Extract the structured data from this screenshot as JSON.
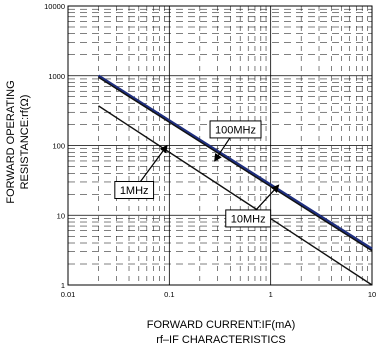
{
  "chart_data": {
    "type": "line",
    "title": "",
    "caption": "rf–IF CHARACTERISTICS",
    "xlabel": "FORWARD CURRENT:IF(mA)",
    "ylabel_line1": "FORWARD OPERATING",
    "ylabel_line2": "RESISTANCE:rf(Ω)",
    "xscale": "log",
    "yscale": "log",
    "xlim": [
      0.01,
      10
    ],
    "ylim": [
      1,
      10000
    ],
    "grid": true,
    "x_tick_labels": [
      "0.01",
      "0.1",
      "1",
      "10"
    ],
    "y_tick_labels": [
      "1",
      "10",
      "100",
      "1000",
      "10000"
    ],
    "series": [
      {
        "name": "100MHz",
        "color": "#1f2f7f",
        "x": [
          0.02,
          10
        ],
        "y": [
          1000,
          3.3
        ]
      },
      {
        "name": "10MHz",
        "color": "#111111",
        "x": [
          0.02,
          10
        ],
        "y": [
          950,
          3.1
        ]
      },
      {
        "name": "1MHz",
        "color": "#111111",
        "x": [
          0.02,
          10
        ],
        "y": [
          370,
          1.0
        ]
      }
    ],
    "annotations": [
      {
        "text": "100MHz",
        "x": 0.45,
        "y": 170,
        "points_to": {
          "x": 0.28,
          "y": 60
        }
      },
      {
        "text": "1MHz",
        "x": 0.045,
        "y": 23,
        "points_to": {
          "x": 0.095,
          "y": 100
        }
      },
      {
        "text": "10MHz",
        "x": 0.6,
        "y": 9,
        "points_to": {
          "x": 1.2,
          "y": 27
        }
      }
    ]
  }
}
